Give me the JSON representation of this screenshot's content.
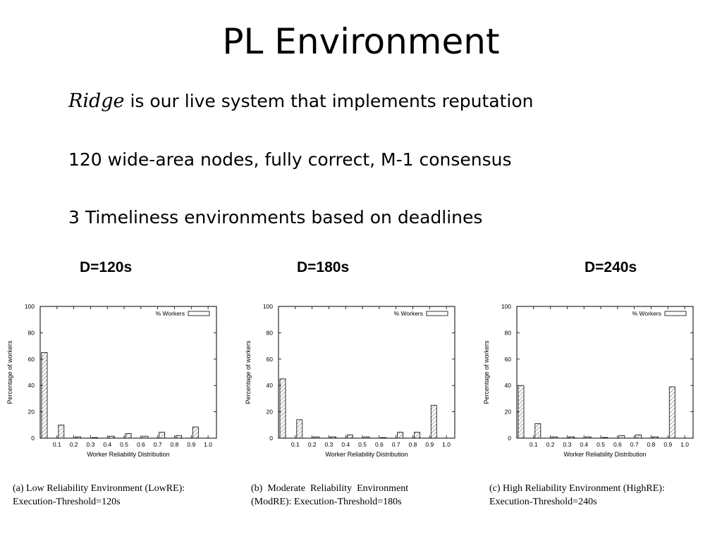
{
  "slide": {
    "title": "PL Environment",
    "bullets": [
      {
        "lead": "Ridge",
        "text": " is our live system that implements reputation"
      },
      {
        "lead": "",
        "text": "120 wide-area nodes, fully correct, M-1 consensus"
      },
      {
        "lead": "",
        "text": "3 Timeliness environments based on deadlines"
      }
    ],
    "deadline_labels": [
      "D=120s",
      "D=180s",
      "D=240s"
    ],
    "captions": [
      [
        "(a) Low Reliability Environment (LowRE):",
        "Execution-Threshold=120s"
      ],
      [
        "(b)  Moderate  Reliability  Environment",
        "(ModRE): Execution-Threshold=180s"
      ],
      [
        "(c) High Reliability Environment (HighRE):",
        "Execution-Threshold=240s"
      ]
    ]
  },
  "chart_data": [
    {
      "type": "bar",
      "xlabel": "Worker Reliability Distribution",
      "ylabel": "Percentage of workers",
      "ylim": [
        0,
        100
      ],
      "yticks": [
        0,
        20,
        40,
        60,
        80,
        100
      ],
      "xticks": [
        "0.1",
        "0.2",
        "0.3",
        "0.4",
        "0.5",
        "0.6",
        "0.7",
        "0.8",
        "0.9",
        "1.0"
      ],
      "legend": "% Workers",
      "legend_position": "top-right",
      "grid": false,
      "bin_left_edges": [
        0,
        0.1,
        0.2,
        0.3,
        0.4,
        0.5,
        0.6,
        0.7,
        0.8,
        0.9
      ],
      "values": [
        65,
        10,
        1,
        0,
        1.5,
        3.5,
        1.5,
        4.5,
        2,
        8.5
      ]
    },
    {
      "type": "bar",
      "xlabel": "Worker Reliability Distribution",
      "ylabel": "Percentage of workers",
      "ylim": [
        0,
        100
      ],
      "yticks": [
        0,
        20,
        40,
        60,
        80,
        100
      ],
      "xticks": [
        "0.1",
        "0.2",
        "0.3",
        "0.4",
        "0.5",
        "0.6",
        "0.7",
        "0.8",
        "0.9",
        "1.0"
      ],
      "legend": "% Workers",
      "legend_position": "top-right",
      "grid": false,
      "bin_left_edges": [
        0,
        0.1,
        0.2,
        0.3,
        0.4,
        0.5,
        0.6,
        0.7,
        0.8,
        0.9
      ],
      "values": [
        45,
        14,
        1,
        1,
        2.5,
        1,
        0,
        4.5,
        4.5,
        25
      ]
    },
    {
      "type": "bar",
      "xlabel": "Worker Reliability Distribution",
      "ylabel": "Percentage of workers",
      "ylim": [
        0,
        100
      ],
      "yticks": [
        0,
        20,
        40,
        60,
        80,
        100
      ],
      "xticks": [
        "0.1",
        "0.2",
        "0.3",
        "0.4",
        "0.5",
        "0.6",
        "0.7",
        "0.8",
        "0.9",
        "1.0"
      ],
      "legend": "% Workers",
      "legend_position": "top-right",
      "grid": false,
      "bin_left_edges": [
        0,
        0.1,
        0.2,
        0.3,
        0.4,
        0.5,
        0.6,
        0.7,
        0.8,
        0.9
      ],
      "values": [
        40,
        11,
        1,
        1,
        1,
        0.5,
        2,
        2.5,
        1,
        39
      ]
    }
  ]
}
